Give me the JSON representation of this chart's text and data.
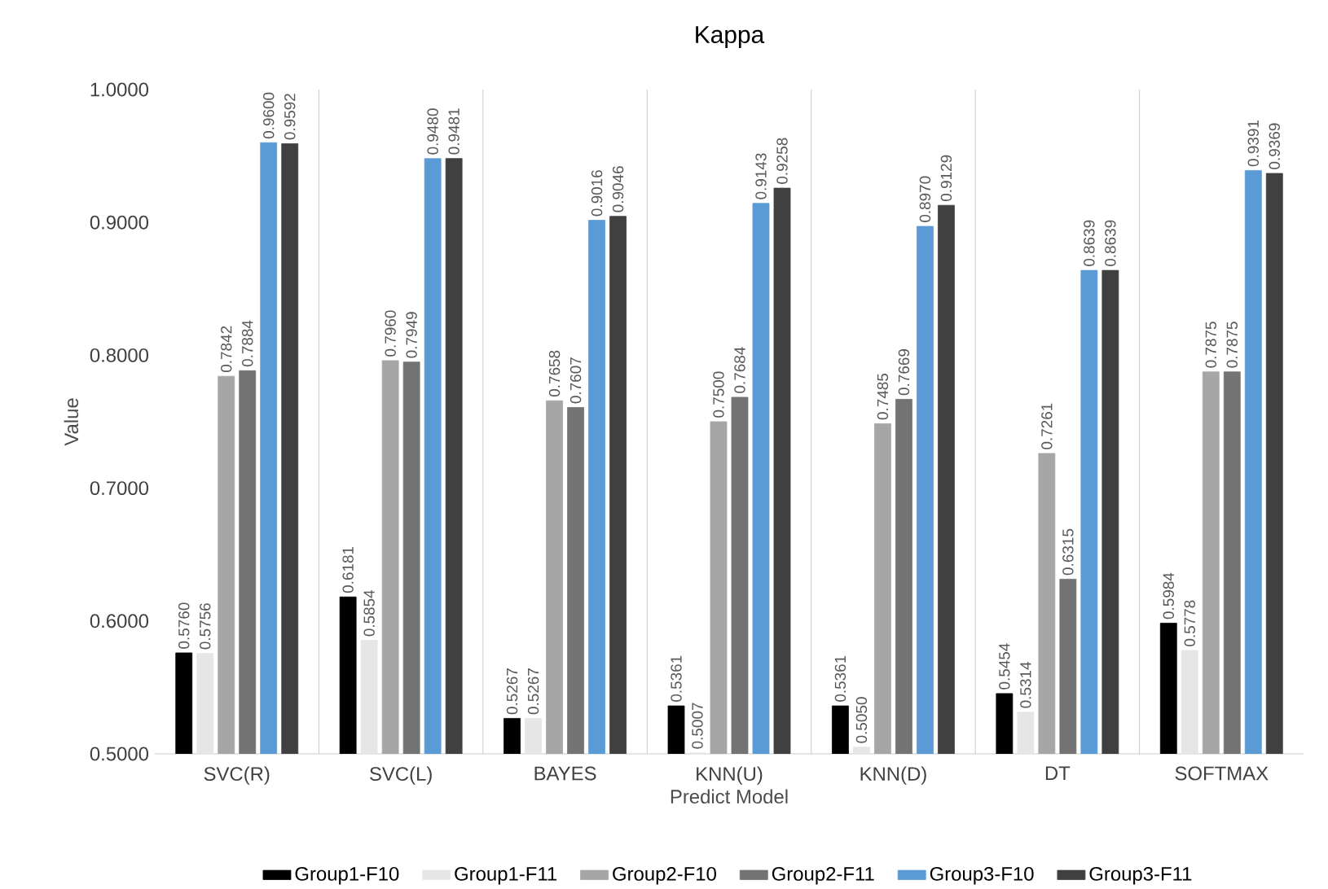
{
  "chart_data": {
    "type": "bar",
    "title": "Kappa",
    "xlabel": "Predict Model",
    "ylabel": "Value",
    "categories": [
      "SVC(R)",
      "SVC(L)",
      "BAYES",
      "KNN(U)",
      "KNN(D)",
      "DT",
      "SOFTMAX"
    ],
    "ylim": [
      0.5,
      1.0
    ],
    "yticks": [
      {
        "value": 0.5,
        "label": "0.5000"
      },
      {
        "value": 0.6,
        "label": "0.6000"
      },
      {
        "value": 0.7,
        "label": "0.7000"
      },
      {
        "value": 0.8,
        "label": "0.8000"
      },
      {
        "value": 0.9,
        "label": "0.9000"
      },
      {
        "value": 1.0,
        "label": "1.0000"
      }
    ],
    "grid": "x",
    "legend": "bottom",
    "series": [
      {
        "name": "Group1-F10",
        "color": "#000000",
        "values": [
          0.576,
          0.6181,
          0.5267,
          0.5361,
          0.5361,
          0.5454,
          0.5984
        ],
        "value_labels": [
          "0.5760",
          "0.6181",
          "0.5267",
          "0.5361",
          "0.5361",
          "0.5454",
          "0.5984"
        ]
      },
      {
        "name": "Group1-F11",
        "color": "#e6e6e6",
        "values": [
          0.5756,
          0.5854,
          0.5267,
          0.5007,
          0.505,
          0.5314,
          0.5778
        ],
        "value_labels": [
          "0.5756",
          "0.5854",
          "0.5267",
          "0.5007",
          "0.5050",
          "0.5314",
          "0.5778"
        ]
      },
      {
        "name": "Group2-F10",
        "color": "#a6a6a6",
        "values": [
          0.7842,
          0.796,
          0.7658,
          0.75,
          0.7485,
          0.7261,
          0.7875
        ],
        "value_labels": [
          "0.7842",
          "0.7960",
          "0.7658",
          "0.7500",
          "0.7485",
          "0.7261",
          "0.7875"
        ]
      },
      {
        "name": "Group2-F11",
        "color": "#737373",
        "values": [
          0.7884,
          0.7949,
          0.7607,
          0.7684,
          0.7669,
          0.6315,
          0.7875
        ],
        "value_labels": [
          "0.7884",
          "0.7949",
          "0.7607",
          "0.7684",
          "0.7669",
          "0.6315",
          "0.7875"
        ]
      },
      {
        "name": "Group3-F10",
        "color": "#5b9bd5",
        "values": [
          0.96,
          0.948,
          0.9016,
          0.9143,
          0.897,
          0.8639,
          0.9391
        ],
        "value_labels": [
          "0.9600",
          "0.9480",
          "0.9016",
          "0.9143",
          "0.8970",
          "0.8639",
          "0.9391"
        ]
      },
      {
        "name": "Group3-F11",
        "color": "#404040",
        "values": [
          0.9592,
          0.9481,
          0.9046,
          0.9258,
          0.9129,
          0.8639,
          0.9369
        ],
        "value_labels": [
          "0.9592",
          "0.9481",
          "0.9046",
          "0.9258",
          "0.9129",
          "0.8639",
          "0.9369"
        ]
      }
    ]
  }
}
